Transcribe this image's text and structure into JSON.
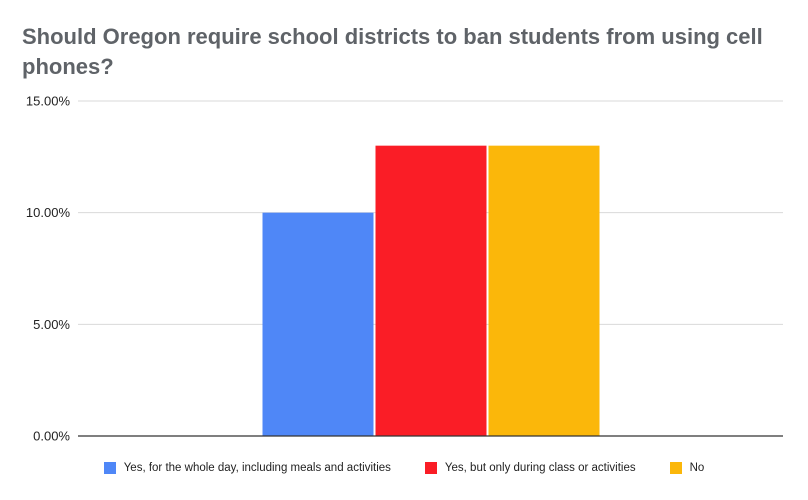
{
  "chart_data": {
    "type": "bar",
    "title": "Should Oregon require school districts to ban students from using cell phones?",
    "xlabel": "",
    "ylabel": "",
    "ylim": [
      0,
      15
    ],
    "yticks": [
      "0.00%",
      "5.00%",
      "10.00%",
      "15.00%"
    ],
    "ytick_values": [
      0,
      5,
      10,
      15
    ],
    "grid": true,
    "legend_position": "bottom",
    "series": [
      {
        "name": "Yes, for the whole day, including meals and activities",
        "values": [
          10
        ],
        "color": "#4f87f7"
      },
      {
        "name": "Yes, but only during class or activities",
        "values": [
          13
        ],
        "color": "#fa1d26"
      },
      {
        "name": "No",
        "values": [
          13
        ],
        "color": "#fbb70a"
      }
    ]
  }
}
